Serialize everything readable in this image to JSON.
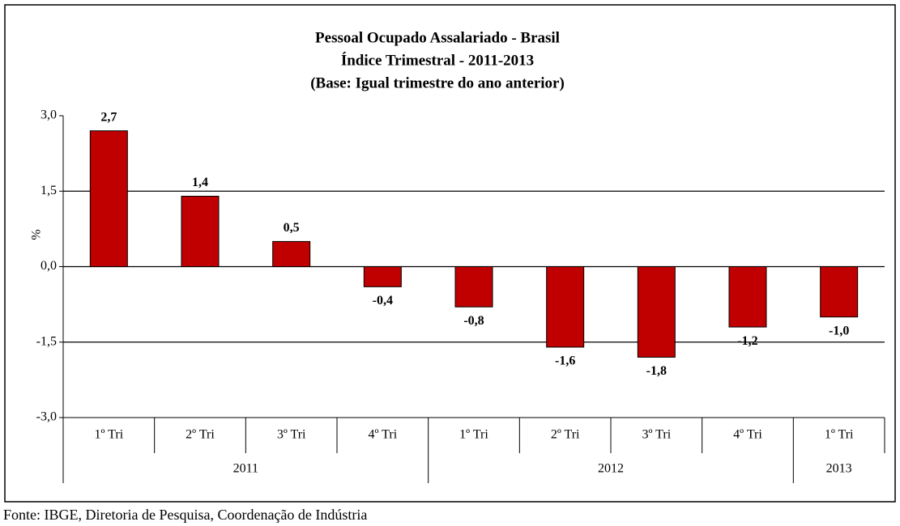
{
  "chart_data": {
    "type": "bar",
    "title": [
      "Pessoal Ocupado Assalariado  - Brasil",
      "Índice Trimestral - 2011-2013",
      "(Base: Igual trimestre do ano anterior)"
    ],
    "y_label": "%",
    "groups": [
      {
        "name": "2011",
        "categories": [
          "1º Tri",
          "2º Tri",
          "3º Tri",
          "4º Tri"
        ]
      },
      {
        "name": "2012",
        "categories": [
          "1º Tri",
          "2º Tri",
          "3º Tri",
          "4º Tri"
        ]
      },
      {
        "name": "2013",
        "categories": [
          "1º Tri"
        ]
      }
    ],
    "values": [
      2.7,
      1.4,
      0.5,
      -0.4,
      -0.8,
      -1.6,
      -1.8,
      -1.2,
      -1.0
    ],
    "value_labels": [
      "2,7",
      "1,4",
      "0,5",
      "-0,4",
      "-0,8",
      "-1,6",
      "-1,8",
      "-1,2",
      "-1,0"
    ],
    "color": "#c00000",
    "ylim": [
      -3,
      3
    ],
    "yticks": [
      {
        "value": -3,
        "label": "-3,0"
      },
      {
        "value": -1.5,
        "label": "-1,5"
      },
      {
        "value": 0,
        "label": "0,0"
      },
      {
        "value": 1.5,
        "label": "1,5"
      },
      {
        "value": 3,
        "label": "3,0"
      }
    ],
    "grid": true,
    "source": "Fonte: IBGE, Diretoria de Pesquisa, Coordenação de Indústria"
  }
}
